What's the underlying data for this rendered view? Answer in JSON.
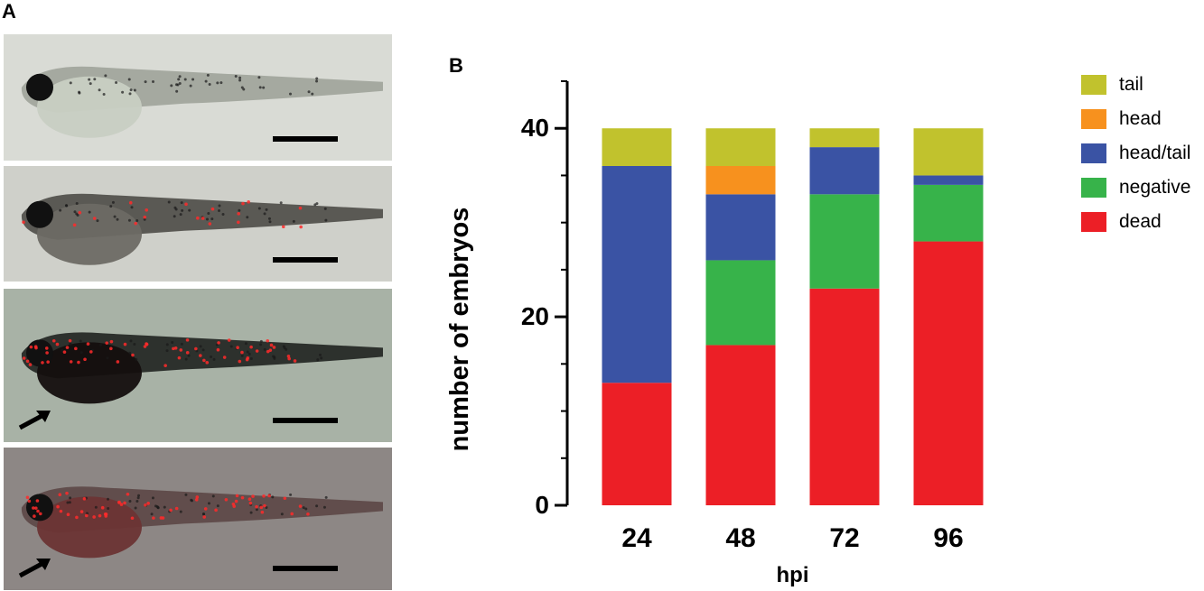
{
  "panel_a": {
    "label": "A",
    "images": [
      {
        "name": "fish-1",
        "bg": "#d9dbd5",
        "body": "#9ea39a",
        "yolk": "#c8cfc3",
        "red": false,
        "arrow": false
      },
      {
        "name": "fish-2",
        "bg": "#cfd0ca",
        "body": "#4c4b47",
        "yolk": "#6d6a64",
        "red": "sparse",
        "arrow": false
      },
      {
        "name": "fish-3",
        "bg": "#a8b2a6",
        "body": "#1f2220",
        "yolk": "#140f0e",
        "red": "dense",
        "arrow": true
      },
      {
        "name": "fish-4",
        "bg": "#8d8785",
        "body": "#5c4746",
        "yolk": "#6b3434",
        "red": "dense",
        "arrow": true
      }
    ]
  },
  "panel_b": {
    "label": "B"
  },
  "chart_data": {
    "type": "bar",
    "stacked": true,
    "categories": [
      "24",
      "48",
      "72",
      "96"
    ],
    "series": [
      {
        "name": "dead",
        "color": "#ec1f26",
        "values": [
          13,
          17,
          23,
          28
        ]
      },
      {
        "name": "negative",
        "color": "#37b34a",
        "values": [
          0,
          9,
          10,
          6
        ]
      },
      {
        "name": "head/tail",
        "color": "#3a53a4",
        "values": [
          23,
          7,
          5,
          1
        ]
      },
      {
        "name": "head",
        "color": "#f7911e",
        "values": [
          0,
          3,
          0,
          0
        ]
      },
      {
        "name": "tail",
        "color": "#c1c22d",
        "values": [
          4,
          4,
          2,
          5
        ]
      }
    ],
    "legend_order": [
      "tail",
      "head",
      "head/tail",
      "negative",
      "dead"
    ],
    "legend_position": "right",
    "xlabel": "hpi",
    "ylabel": "number of embryos",
    "ylim": [
      0,
      45
    ],
    "yticks": [
      0,
      20,
      40
    ],
    "grid": false
  }
}
